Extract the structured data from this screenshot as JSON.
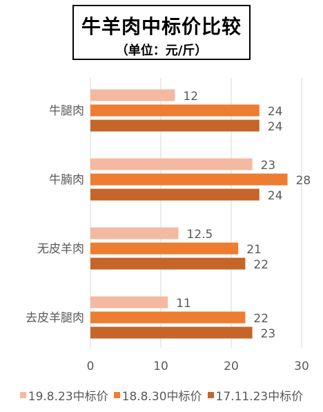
{
  "chart_data": {
    "type": "bar",
    "orientation": "horizontal",
    "title": "牛羊肉中标价比较",
    "subtitle": "（单位：元/斤）",
    "categories": [
      "牛腿肉",
      "牛腩肉",
      "无皮羊肉",
      "去皮羊腿肉"
    ],
    "series": [
      {
        "name": "19.8.23中标价",
        "color": "#F4B9A1",
        "values": [
          12,
          23,
          12.5,
          11
        ],
        "labels": [
          "12",
          "23",
          "12.5",
          "11"
        ]
      },
      {
        "name": "18.8.30中标价",
        "color": "#ED7D31",
        "values": [
          24,
          28,
          21,
          22
        ],
        "labels": [
          "24",
          "28",
          "21",
          "22"
        ]
      },
      {
        "name": "17.11.23中标价",
        "color": "#C5652A",
        "values": [
          24,
          24,
          22,
          23
        ],
        "labels": [
          "24",
          "24",
          "22",
          "23"
        ]
      }
    ],
    "xlim": [
      0,
      30
    ],
    "xticks": [
      0,
      10,
      20,
      30
    ],
    "xtick_labels": [
      "0",
      "10",
      "20",
      "30"
    ],
    "grid": true,
    "legend_position": "bottom"
  }
}
